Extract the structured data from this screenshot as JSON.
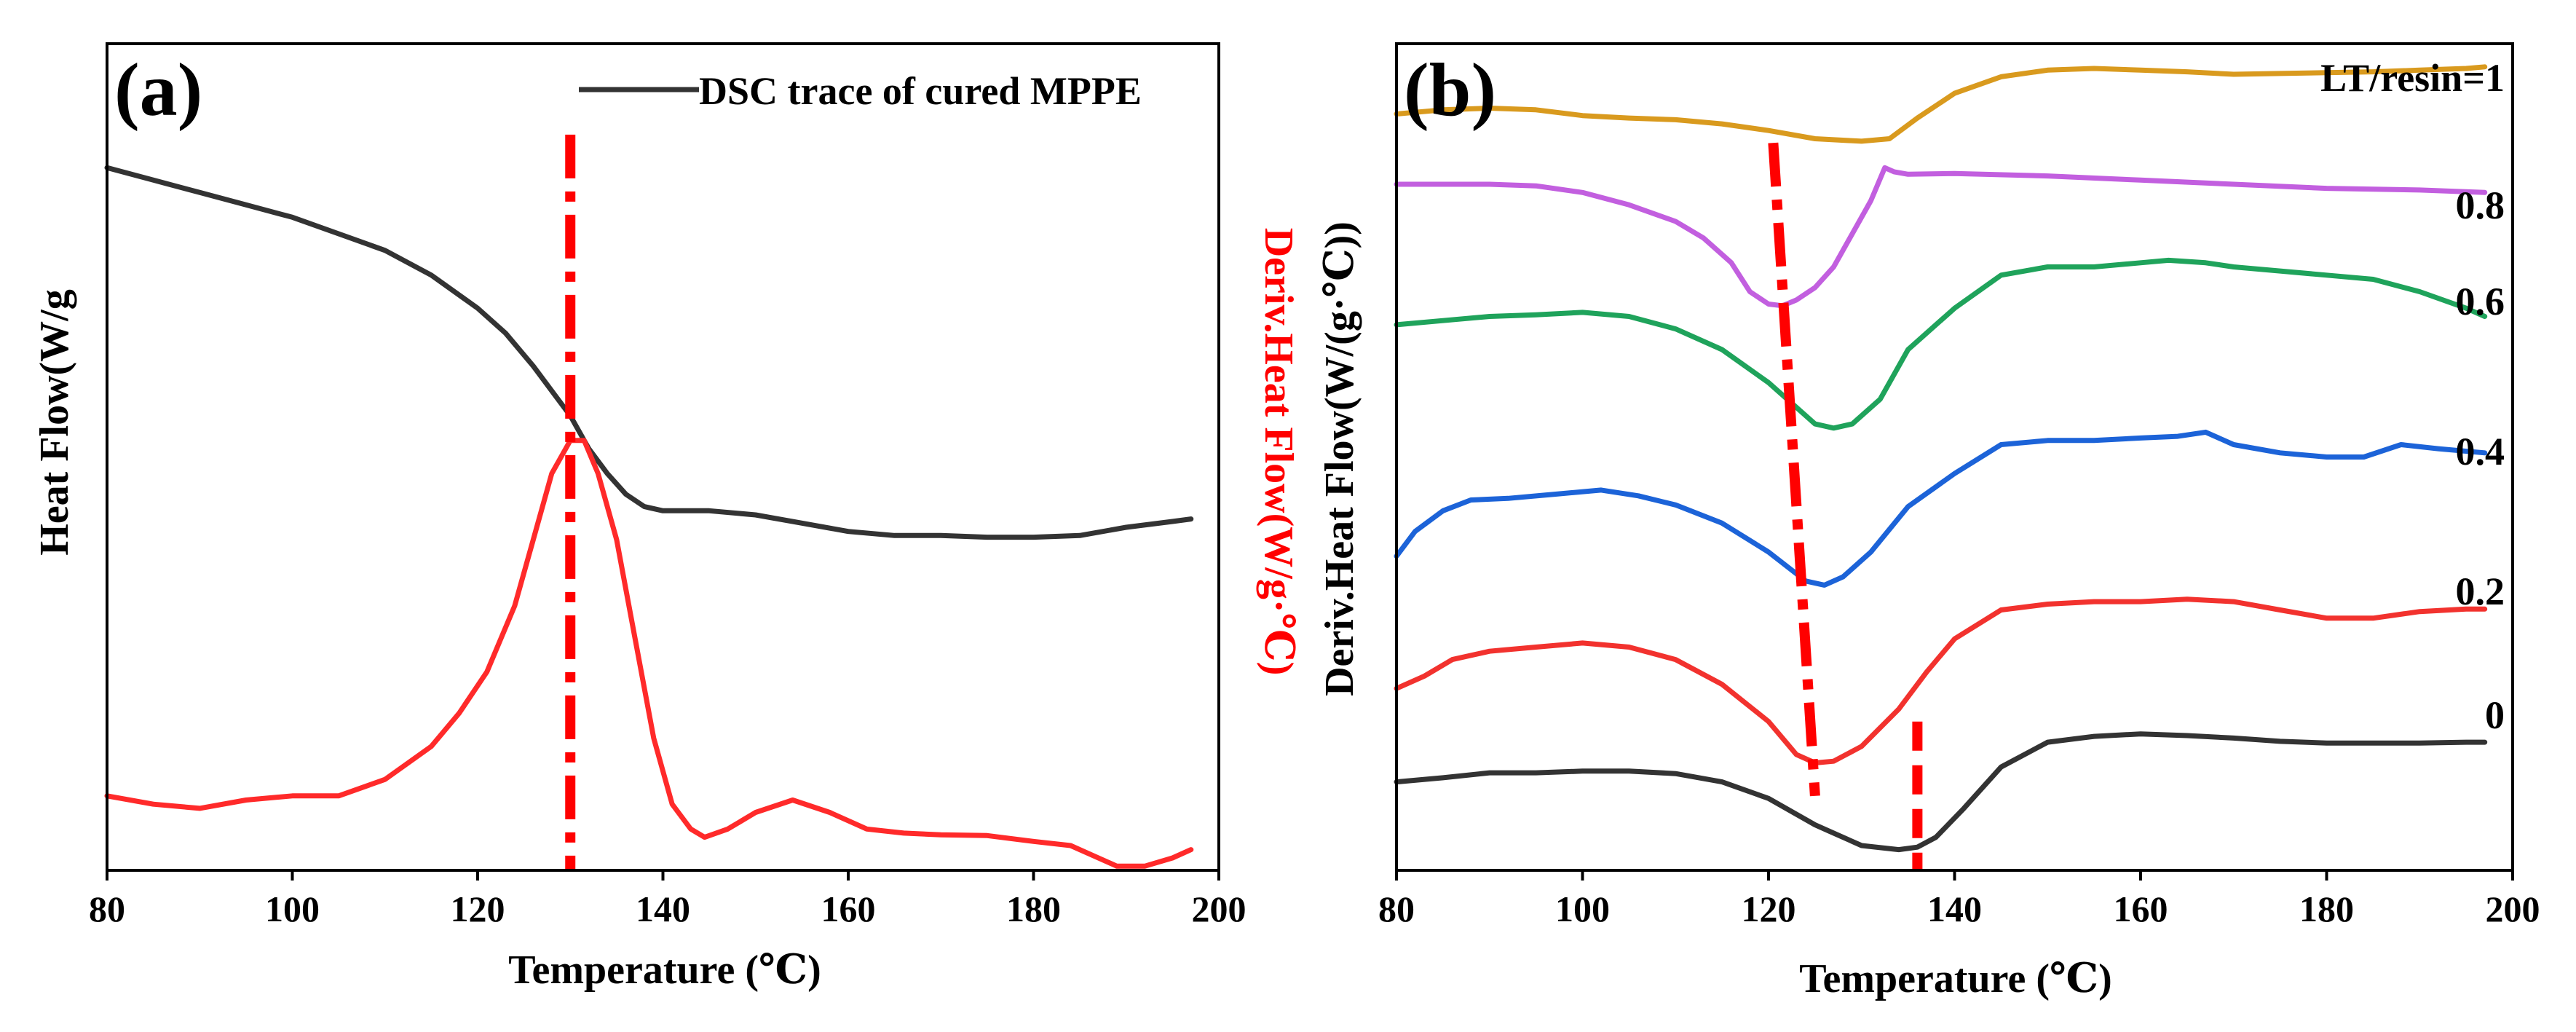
{
  "chart_data": [
    {
      "panel_label": "(a)",
      "type": "line",
      "xlabel": "Temperature (℃)",
      "ylabel": "Heat Flow(W/g",
      "ylabel_right": "Deriv.Heat Flow(W/g·℃)",
      "xlim": [
        80,
        200
      ],
      "xticks": [
        80,
        100,
        120,
        140,
        160,
        180,
        200
      ],
      "ylim": [
        0,
        100
      ],
      "y_ticks_shown": false,
      "legend": {
        "position": "top-right",
        "entries": [
          "DSC trace of cured MPPE"
        ]
      },
      "marker_line": {
        "x": 130,
        "color": "#ff0000",
        "style": "dash-dot"
      },
      "series": [
        {
          "name": "DSC trace of cured MPPE",
          "color": "#333333",
          "x": [
            80,
            85,
            90,
            95,
            100,
            105,
            110,
            115,
            120,
            123,
            126,
            128,
            130,
            132,
            134,
            136,
            138,
            140,
            145,
            150,
            155,
            160,
            165,
            170,
            175,
            180,
            185,
            190,
            195,
            197
          ],
          "y": [
            85,
            83.5,
            82,
            80.5,
            79,
            77,
            75,
            72,
            68,
            65,
            61,
            58,
            55,
            51,
            48,
            45.5,
            44,
            43.5,
            43.5,
            43,
            42,
            41,
            40.5,
            40.5,
            40.3,
            40.3,
            40.5,
            41.5,
            42.2,
            42.5
          ]
        },
        {
          "name": "Deriv. Heat Flow",
          "color": "#ff2a2a",
          "x": [
            80,
            85,
            90,
            95,
            100,
            105,
            110,
            115,
            118,
            121,
            124,
            126,
            128,
            130,
            131.5,
            133,
            135,
            137,
            139,
            141,
            143,
            144.5,
            147,
            150,
            154,
            158,
            162,
            166,
            170,
            175,
            180,
            184,
            186,
            189,
            192,
            195,
            197
          ],
          "y": [
            9,
            8,
            7.5,
            8.5,
            9,
            9,
            11,
            15,
            19,
            24,
            32,
            40,
            48,
            52,
            52,
            48,
            40,
            28,
            16,
            8,
            5,
            4,
            5,
            7,
            8.5,
            7,
            5,
            4.5,
            4.3,
            4.2,
            3.5,
            3,
            2,
            0.5,
            0.5,
            1.5,
            2.5
          ]
        }
      ]
    },
    {
      "panel_label": "(b)",
      "type": "line",
      "xlabel": "Temperature (℃)",
      "ylabel": "Deriv.Heat Flow(W/(g·℃))",
      "xlim": [
        80,
        200
      ],
      "xticks": [
        80,
        100,
        120,
        140,
        160,
        180,
        200
      ],
      "ylim": [
        0,
        100
      ],
      "y_ticks_shown": false,
      "guide_lines": [
        {
          "points": [
            [
              120.5,
              88
            ],
            [
              125,
              9
            ]
          ],
          "color": "#ff0000",
          "style": "dash-dot"
        },
        {
          "points": [
            [
              136,
              18
            ],
            [
              136,
              0
            ]
          ],
          "color": "#ff0000",
          "style": "dashed"
        }
      ],
      "series": [
        {
          "name": "LT/resin=1",
          "label": "LT/resin=1",
          "color": "#d99a1e",
          "x": [
            80,
            85,
            90,
            95,
            100,
            105,
            110,
            115,
            120,
            125,
            130,
            133,
            136,
            140,
            145,
            150,
            155,
            160,
            165,
            170,
            175,
            180,
            185,
            190,
            195,
            197
          ],
          "y": [
            91.5,
            92,
            92.2,
            92,
            91.3,
            91,
            90.8,
            90.3,
            89.5,
            88.5,
            88.2,
            88.5,
            91,
            94,
            96,
            96.8,
            97,
            96.8,
            96.6,
            96.3,
            96.4,
            96.5,
            96.6,
            96.8,
            97,
            97.2
          ]
        },
        {
          "name": "0.8",
          "label": "0.8",
          "color": "#c25fdf",
          "x": [
            80,
            85,
            90,
            95,
            100,
            105,
            110,
            113,
            115,
            116,
            118,
            120,
            121.5,
            123,
            125,
            127,
            129,
            131,
            132.5,
            133.5,
            135,
            140,
            150,
            160,
            170,
            180,
            190,
            197
          ],
          "y": [
            83,
            83,
            83,
            82.8,
            82,
            80.5,
            78.5,
            76.5,
            74.5,
            73.5,
            70,
            68.5,
            68.3,
            69,
            70.5,
            73,
            77,
            81,
            85,
            84.5,
            84.2,
            84.3,
            84,
            83.5,
            83,
            82.5,
            82.3,
            82
          ]
        },
        {
          "name": "0.6",
          "label": "0.6",
          "color": "#1fa35b",
          "x": [
            80,
            85,
            90,
            95,
            100,
            105,
            110,
            115,
            120,
            123,
            125,
            127,
            129,
            132,
            135,
            140,
            145,
            150,
            155,
            160,
            163,
            167,
            170,
            175,
            180,
            185,
            190,
            195,
            197
          ],
          "y": [
            66,
            66.5,
            67,
            67.2,
            67.5,
            67,
            65.5,
            63,
            59,
            56,
            54,
            53.5,
            54,
            57,
            63,
            68,
            72,
            73,
            73,
            73.5,
            73.8,
            73.5,
            73,
            72.5,
            72,
            71.5,
            70,
            68,
            67
          ]
        },
        {
          "name": "0.4",
          "label": "0.4",
          "color": "#1c63d8",
          "x": [
            80,
            82,
            85,
            88,
            92,
            97,
            102,
            106,
            110,
            115,
            120,
            124,
            126,
            128,
            131,
            135,
            140,
            145,
            150,
            155,
            160,
            164,
            167,
            170,
            175,
            180,
            184,
            188,
            192,
            197
          ],
          "y": [
            38,
            41,
            43.5,
            44.8,
            45,
            45.5,
            46,
            45.3,
            44.2,
            42,
            38.5,
            35,
            34.5,
            35.5,
            38.5,
            44,
            48,
            51.5,
            52,
            52,
            52.3,
            52.5,
            53,
            51.5,
            50.5,
            50,
            50,
            51.5,
            51,
            50.5
          ]
        },
        {
          "name": "0.2",
          "label": "0.2",
          "color": "#f2322e",
          "x": [
            80,
            83,
            86,
            90,
            95,
            100,
            105,
            110,
            115,
            120,
            123,
            125,
            127,
            130,
            134,
            137,
            140,
            145,
            150,
            155,
            160,
            165,
            170,
            175,
            180,
            185,
            190,
            195,
            197
          ],
          "y": [
            22,
            23.5,
            25.5,
            26.5,
            27,
            27.5,
            27,
            25.5,
            22.5,
            18,
            14,
            13,
            13.2,
            15,
            19.5,
            24,
            28,
            31.5,
            32.2,
            32.5,
            32.5,
            32.8,
            32.5,
            31.5,
            30.5,
            30.5,
            31.3,
            31.6,
            31.6
          ]
        },
        {
          "name": "0",
          "label": "0",
          "color": "#333333",
          "x": [
            80,
            85,
            90,
            95,
            100,
            105,
            110,
            115,
            120,
            125,
            130,
            134,
            136,
            138,
            141,
            145,
            150,
            155,
            160,
            165,
            170,
            175,
            180,
            185,
            190,
            195,
            197
          ],
          "y": [
            10.7,
            11.2,
            11.8,
            11.8,
            12,
            12,
            11.7,
            10.7,
            8.7,
            5.5,
            3,
            2.5,
            2.8,
            4,
            7.5,
            12.5,
            15.5,
            16.2,
            16.5,
            16.3,
            16,
            15.6,
            15.4,
            15.4,
            15.4,
            15.5,
            15.5
          ]
        }
      ]
    }
  ]
}
